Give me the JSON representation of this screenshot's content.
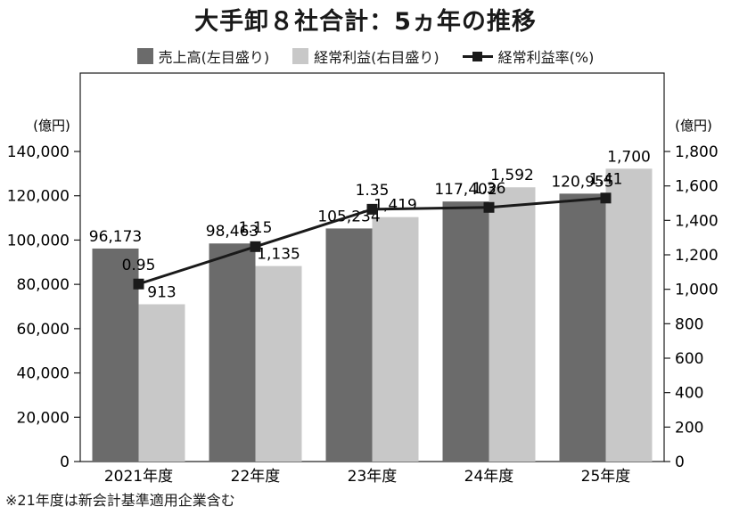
{
  "title": "大手卸８社合計：5ヵ年の推移",
  "footnote": "※21年度は新会計基準適用企業含む",
  "colors": {
    "sales": "#6b6b6b",
    "profit": "#c8c8c8",
    "line": "#1a1a1a"
  },
  "chart_data": {
    "type": "bar",
    "categories": [
      "2021年度",
      "22年度",
      "23年度",
      "24年度",
      "25年度"
    ],
    "series": [
      {
        "name": "売上高(左目盛り)",
        "values": [
          96173,
          98463,
          105234,
          117402,
          120955
        ],
        "labels": [
          "96,173",
          "98,463",
          "105,234",
          "117,402",
          "120,955"
        ],
        "axis": "left",
        "kind": "bar"
      },
      {
        "name": "経常利益(右目盛り)",
        "values": [
          913,
          1135,
          1419,
          1592,
          1700
        ],
        "labels": [
          "913",
          "1,135",
          "1,419",
          "1,592",
          "1,700"
        ],
        "axis": "right",
        "kind": "bar"
      },
      {
        "name": "経常利益率(%)",
        "values": [
          0.95,
          1.15,
          1.35,
          1.36,
          1.41
        ],
        "labels": [
          "0.95",
          "1.15",
          "1.35",
          "1.36",
          "1.41"
        ],
        "kind": "line"
      }
    ],
    "y_left": {
      "unit": "(億円)",
      "ylim": [
        0,
        140000
      ],
      "ticks": [
        0,
        20000,
        40000,
        60000,
        80000,
        100000,
        120000,
        140000
      ],
      "tick_labels": [
        "0",
        "20,000",
        "40,000",
        "60,000",
        "80,000",
        "100,000",
        "120,000",
        "140,000"
      ]
    },
    "y_right": {
      "unit": "(億円)",
      "ylim": [
        0,
        1800
      ],
      "ticks": [
        0,
        200,
        400,
        600,
        800,
        1000,
        1200,
        1400,
        1600,
        1800
      ],
      "tick_labels": [
        "0",
        "200",
        "400",
        "600",
        "800",
        "1,000",
        "1,200",
        "1,400",
        "1,600",
        "1,800"
      ]
    },
    "line_range": [
      0,
      1.85
    ],
    "legend_position": "top-center",
    "grid": false
  }
}
